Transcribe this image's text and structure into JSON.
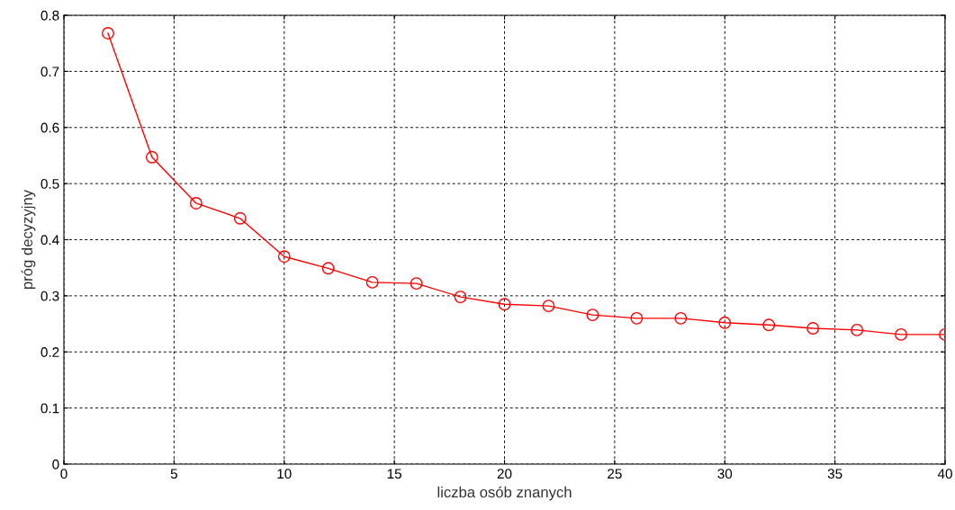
{
  "chart_data": {
    "type": "line",
    "xlabel": "liczba osób znanych",
    "ylabel": "próg decyzyjny",
    "x": [
      2,
      4,
      6,
      8,
      10,
      12,
      14,
      16,
      18,
      20,
      22,
      24,
      26,
      28,
      30,
      32,
      34,
      36,
      38,
      40
    ],
    "series": [
      {
        "color": "#ff0000",
        "values": [
          0.768,
          0.547,
          0.465,
          0.438,
          0.37,
          0.349,
          0.324,
          0.322,
          0.298,
          0.285,
          0.282,
          0.266,
          0.26,
          0.26,
          0.252,
          0.248,
          0.242,
          0.239,
          0.231,
          0.231
        ]
      }
    ],
    "xlim": [
      0,
      40
    ],
    "xticks": [
      0,
      5,
      10,
      15,
      20,
      25,
      30,
      35,
      40
    ],
    "ylim": [
      0,
      0.8
    ],
    "yticks": [
      0,
      0.1,
      0.2,
      0.3,
      0.4,
      0.5,
      0.6,
      0.7,
      0.8
    ],
    "grid": true,
    "marker": "circle",
    "line_style": "solid"
  }
}
